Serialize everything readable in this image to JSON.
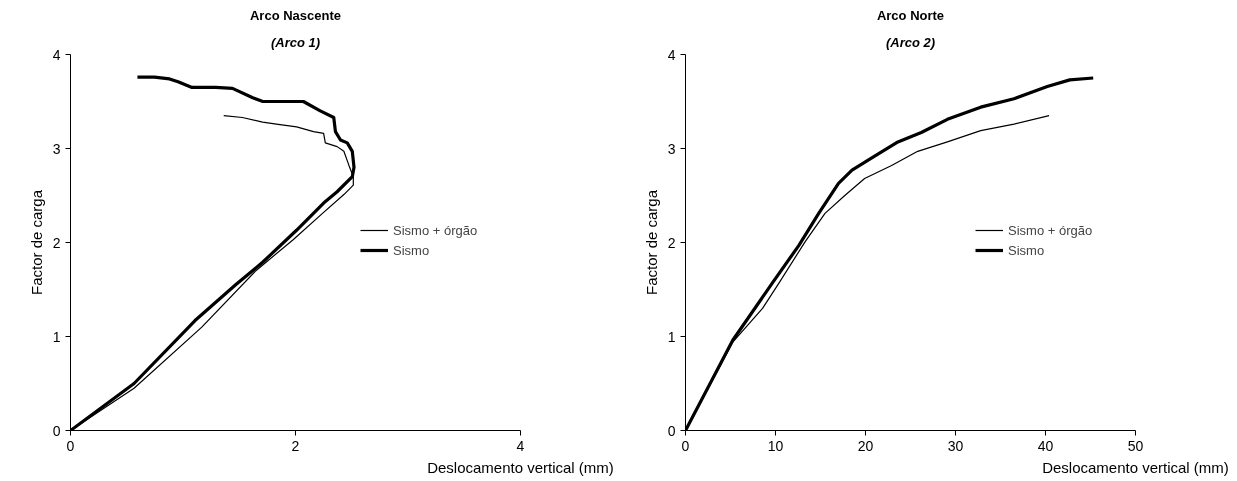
{
  "chart_data": [
    {
      "type": "line",
      "title": "Arco Nascente",
      "subtitle": "(Arco 1)",
      "xlabel": "Deslocamento vertical (mm)",
      "ylabel": "Factor de carga",
      "xlim": [
        0,
        4
      ],
      "xticks": [
        0,
        2,
        4
      ],
      "ylim": [
        0,
        4
      ],
      "yticks": [
        0,
        1,
        2,
        3,
        4
      ],
      "grid": false,
      "legend": "right",
      "marker": "none",
      "line_style": "solid",
      "series": [
        {
          "name": "Sismo + órgão",
          "color": "#000000",
          "x": [
            0,
            0.565,
            1.167,
            1.648,
            1.979,
            2.25,
            2.43,
            2.514,
            2.514,
            2.475,
            2.43,
            2.37,
            2.265,
            2.25,
            2.16,
            2.01,
            1.83,
            1.708,
            1.528,
            1.362
          ],
          "values": [
            0,
            0.45,
            1.1,
            1.7,
            2.03,
            2.32,
            2.51,
            2.61,
            2.7,
            2.82,
            2.97,
            3.02,
            3.06,
            3.16,
            3.18,
            3.23,
            3.26,
            3.28,
            3.33,
            3.35
          ]
        },
        {
          "name": "Sismo",
          "color": "#000000",
          "x": [
            0,
            0.565,
            1.107,
            1.468,
            1.708,
            2.009,
            2.25,
            2.37,
            2.505,
            2.52,
            2.505,
            2.46,
            2.4,
            2.355,
            2.34,
            2.22,
            2.07,
            1.71,
            1.62,
            1.44,
            1.29,
            1.08,
            0.956,
            0.88,
            0.746,
            0.595
          ],
          "values": [
            0,
            0.5,
            1.17,
            1.55,
            1.79,
            2.13,
            2.42,
            2.54,
            2.7,
            2.8,
            2.97,
            3.06,
            3.09,
            3.18,
            3.33,
            3.4,
            3.5,
            3.5,
            3.54,
            3.64,
            3.65,
            3.65,
            3.71,
            3.74,
            3.76,
            3.76
          ]
        }
      ]
    },
    {
      "type": "line",
      "title": "Arco Norte",
      "subtitle": "(Arco 2)",
      "xlabel": "Deslocamento vertical (mm)",
      "ylabel": "Factor de carga",
      "xlim": [
        0,
        50
      ],
      "xticks": [
        0,
        10,
        20,
        30,
        40,
        50
      ],
      "ylim": [
        0,
        4
      ],
      "yticks": [
        0,
        1,
        2,
        3,
        4
      ],
      "grid": false,
      "legend": "right",
      "marker": "none",
      "line_style": "solid",
      "series": [
        {
          "name": "Sismo + órgão",
          "color": "#000000",
          "x": [
            0,
            5.25,
            8.56,
            10.4,
            13.3,
            15.5,
            17.7,
            19.9,
            22.9,
            25.8,
            29.1,
            32.8,
            36.5,
            40.4
          ],
          "values": [
            0,
            0.94,
            1.3,
            1.57,
            2.01,
            2.31,
            2.5,
            2.68,
            2.82,
            2.97,
            3.07,
            3.19,
            3.26,
            3.35
          ]
        },
        {
          "name": "Sismo",
          "color": "#000000",
          "x": [
            0,
            5.25,
            9.66,
            12.6,
            14.8,
            17.0,
            18.5,
            20.7,
            23.6,
            26.2,
            29.1,
            32.8,
            36.5,
            40.2,
            42.7,
            45.3
          ],
          "values": [
            0,
            0.96,
            1.57,
            1.97,
            2.31,
            2.63,
            2.77,
            2.9,
            3.07,
            3.17,
            3.31,
            3.44,
            3.53,
            3.66,
            3.73,
            3.75
          ]
        }
      ]
    }
  ]
}
